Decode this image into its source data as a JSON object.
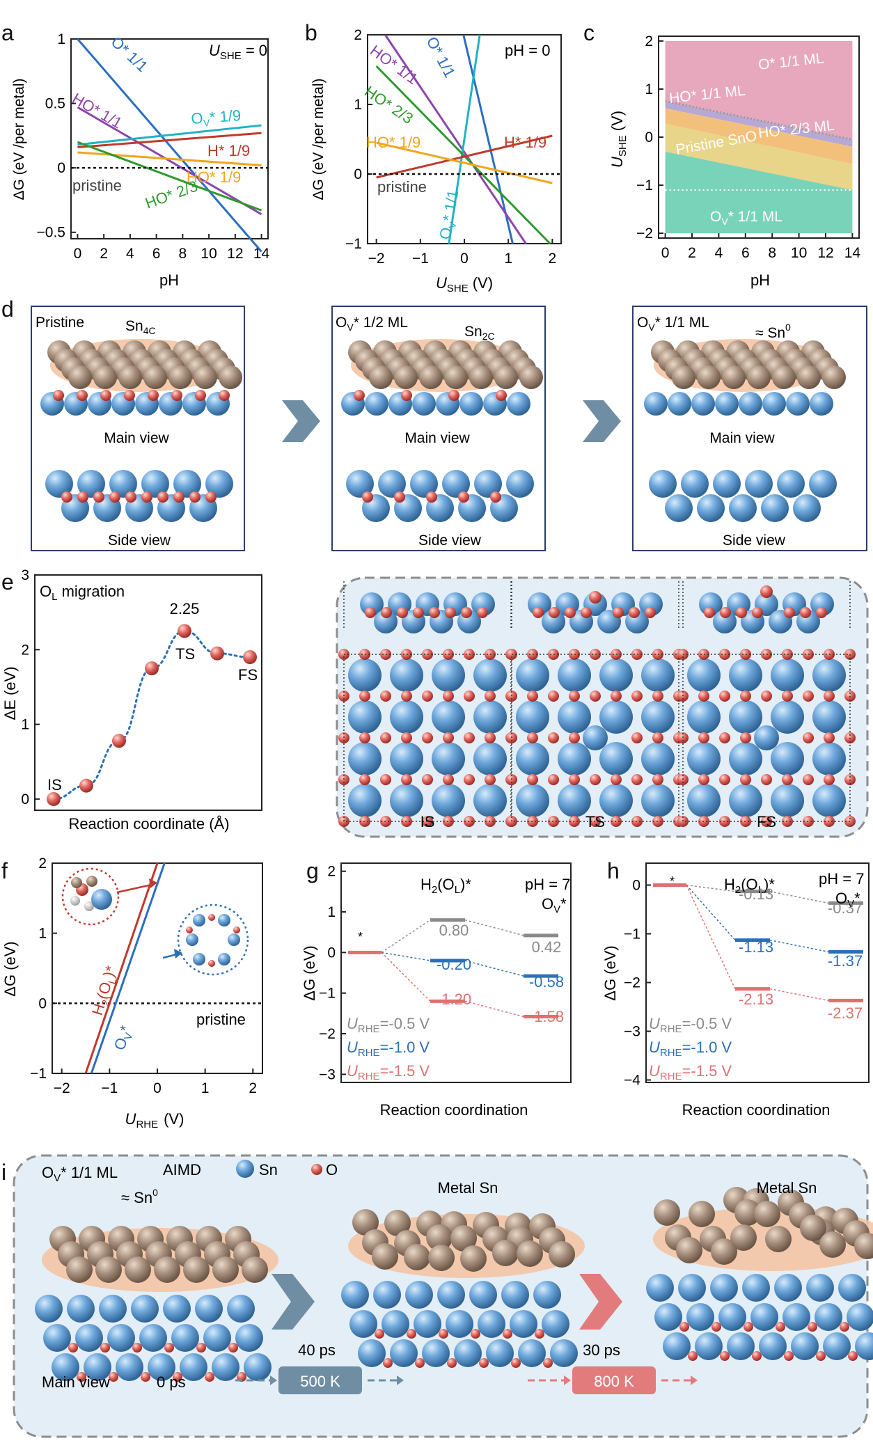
{
  "panel_letters": {
    "a": "a",
    "b": "b",
    "c": "c",
    "d": "d",
    "e": "e",
    "f": "f",
    "g": "g",
    "h": "h",
    "i": "i"
  },
  "colors": {
    "blue": "#2a6ec2",
    "purple": "#8e44ad",
    "cyan": "#1fb3c4",
    "red": "#c0392b",
    "orange": "#f2a51a",
    "green": "#2e9a2e",
    "grey": "#8a8a8a",
    "dark_blue": "#2c6fb4",
    "salmon": "#e07070",
    "sn_atom": "#5b9bd5",
    "o_atom": "#d9534f",
    "bg_blue": "#e3eef7",
    "arrow_steel": "#6f8ea3",
    "arrow_red": "#e27c7c"
  },
  "panel_a": {
    "corner_label_prefix": "U",
    "corner_label_sub": "SHE",
    "corner_label_suffix": " = 0",
    "ylabel": "ΔG (eV /per metal)",
    "xlabel": "pH",
    "xticks": [
      "0",
      "2",
      "4",
      "6",
      "8",
      "10",
      "12",
      "14"
    ],
    "yticks": [
      "−0.5",
      "0",
      "0.5",
      "1"
    ],
    "series_labels": {
      "o_star": "O* 1/1",
      "ho_star_1": "HO* 1/1",
      "ov_star": "O",
      "ov_tail": "* 1/9",
      "h_star": "H* 1/9",
      "ho_star_19": "HO* 1/9",
      "pristine": "pristine",
      "ho_star_23": "HO* 2/3"
    }
  },
  "panel_b": {
    "corner_label": "pH = 0",
    "ylabel": "ΔG (eV /per metal)",
    "xlabel_main": "U",
    "xlabel_sub": "SHE",
    "xlabel_unit": "(V)",
    "xticks": [
      "−2",
      "−1",
      "0",
      "1",
      "2"
    ],
    "yticks": [
      "−1",
      "0",
      "1",
      "2"
    ],
    "series_labels": {
      "ho_star_1": "HO* 1/1",
      "o_star": "O* 1/1",
      "ho_star_23": "HO* 2/3",
      "h_star": "H* 1/9",
      "ho_star_19": "HO* 1/9",
      "pristine": "pristine",
      "ov_star": "O",
      "ov_tail": "* 1/1"
    }
  },
  "panel_c": {
    "ylabel_main": "U",
    "ylabel_sub": "SHE",
    "ylabel_unit": "(V)",
    "xlabel": "pH",
    "xticks": [
      "0",
      "2",
      "4",
      "6",
      "8",
      "10",
      "12",
      "14"
    ],
    "yticks": [
      "−2",
      "−1",
      "0",
      "1",
      "2"
    ],
    "regions": {
      "o_star": "O* 1/1 ML",
      "ho_star": "HO* 1/1 ML",
      "ho_star_23": "HO* 2/3 ML",
      "pristine": "Pristine SnO",
      "ov": "O",
      "ov_tail": "* 1/1 ML"
    }
  },
  "panel_d": {
    "boxes": [
      {
        "title": "Pristine",
        "subtitle": "Sn",
        "subtitle_sub": "4C",
        "main": "Main view",
        "side": "Side view"
      },
      {
        "title": "O",
        "title_sub": "V",
        "title_tail": "* 1/2 ML",
        "subtitle": "Sn",
        "subtitle_sub": "2C",
        "main": "Main view",
        "side": "Side view"
      },
      {
        "title": "O",
        "title_sub": "V",
        "title_tail": "* 1/1 ML",
        "subtitle": "≈ Sn",
        "subtitle_sup": "0",
        "main": "Main view",
        "side": "Side view"
      }
    ]
  },
  "panel_e": {
    "title_main": "O",
    "title_sub": "L",
    "title_tail": " migration",
    "ylabel": "ΔE (eV)",
    "xlabel": "Reaction coordinate (Å)",
    "yticks": [
      "0",
      "1",
      "2",
      "3"
    ],
    "barrier_label": "2.25",
    "state_labels": {
      "is": "IS",
      "ts": "TS",
      "fs": "FS"
    },
    "structure_labels": [
      "IS",
      "TS",
      "FS"
    ]
  },
  "panel_f": {
    "ylabel": "ΔG (eV)",
    "xlabel_main": "U",
    "xlabel_sub": "RHE",
    "xlabel_unit": "(V)",
    "xticks": [
      "−2",
      "−1",
      "0",
      "1",
      "2"
    ],
    "yticks": [
      "−1",
      "0",
      "1",
      "2"
    ],
    "line_label_h2": "H",
    "line_label_h2_sub1": "2",
    "line_label_h2_mid": "(O",
    "line_label_h2_sub2": "L",
    "line_label_h2_tail": ")*",
    "line_label_ov": "O",
    "line_label_ov_sub": "V",
    "line_label_ov_tail": "*",
    "pristine": "pristine"
  },
  "panel_g": {
    "ylabel": "ΔG (eV)",
    "xlabel": "Reaction coordination",
    "yticks": [
      "−3",
      "−2",
      "−1",
      "0",
      "1",
      "2"
    ],
    "header_h2": "H",
    "header_h2_sub1": "2",
    "header_h2_mid": "(O",
    "header_h2_sub2": "L",
    "header_h2_tail": ")*",
    "header_ph": "pH = 7",
    "header_ov": "O",
    "header_ov_sub": "V",
    "header_ov_tail": "*",
    "star": "*",
    "values": {
      "g1": "0.80",
      "g2": "0.42",
      "b1": "-0.20",
      "b2": "-0.58",
      "r1": "-1.20",
      "r2": "-1.58"
    },
    "legend": [
      {
        "main": "U",
        "sub": "RHE",
        "tail": "=-0.5 V"
      },
      {
        "main": "U",
        "sub": "RHE",
        "tail": "=-1.0 V"
      },
      {
        "main": "U",
        "sub": "RHE",
        "tail": "=-1.5 V"
      }
    ]
  },
  "panel_h": {
    "ylabel": "ΔG (eV)",
    "xlabel": "Reaction coordination",
    "yticks": [
      "−4",
      "−3",
      "−2",
      "−1",
      "0"
    ],
    "header_h2": "H",
    "header_h2_sub1": "2",
    "header_h2_mid": "(O",
    "header_h2_sub2": "L",
    "header_h2_tail": ")*",
    "header_ph": "pH = 7",
    "header_ov": "O",
    "header_ov_sub": "V",
    "header_ov_tail": "*",
    "star": "*",
    "values": {
      "g1": "-0.13",
      "g2": "-0.37",
      "b1": "-1.13",
      "b2": "-1.37",
      "r1": "-2.13",
      "r2": "-2.37"
    },
    "legend": [
      {
        "main": "U",
        "sub": "RHE",
        "tail": "=-0.5 V"
      },
      {
        "main": "U",
        "sub": "RHE",
        "tail": "=-1.0 V"
      },
      {
        "main": "U",
        "sub": "RHE",
        "tail": "=-1.5 V"
      }
    ]
  },
  "panel_i": {
    "title_main": "O",
    "title_sub": "V",
    "title_tail": "* 1/1 ML",
    "aimd": "AIMD",
    "legend_sn": "Sn",
    "legend_o": "O",
    "approx": "≈ Sn",
    "approx_sup": "0",
    "metal_sn_1": "Metal Sn",
    "metal_sn_2": "Metal Sn",
    "main_view": "Main view",
    "t0": "0 ps",
    "t40": "40 ps",
    "t30": "30 ps",
    "k500": "500 K",
    "k800": "800 K"
  },
  "chart_data": [
    {
      "type": "line",
      "panel": "a",
      "xlabel": "pH",
      "ylabel": "ΔG (eV /per metal)",
      "xlim": [
        0,
        14
      ],
      "ylim": [
        -0.5,
        1
      ],
      "series": [
        {
          "name": "O* 1/1",
          "x": [
            0,
            14
          ],
          "y": [
            1.0,
            -0.65
          ]
        },
        {
          "name": "HO* 1/1",
          "x": [
            0,
            14
          ],
          "y": [
            0.47,
            -0.36
          ]
        },
        {
          "name": "Ov* 1/9",
          "x": [
            0,
            14
          ],
          "y": [
            0.18,
            0.33
          ]
        },
        {
          "name": "H* 1/9",
          "x": [
            0,
            14
          ],
          "y": [
            0.16,
            0.27
          ]
        },
        {
          "name": "HO* 1/9",
          "x": [
            0,
            14
          ],
          "y": [
            0.12,
            0.02
          ]
        },
        {
          "name": "HO* 2/3",
          "x": [
            0,
            14
          ],
          "y": [
            0.2,
            -0.33
          ]
        },
        {
          "name": "pristine",
          "x": [
            0,
            14
          ],
          "y": [
            0,
            0
          ]
        }
      ]
    },
    {
      "type": "line",
      "panel": "b",
      "xlabel": "U_SHE (V)",
      "ylabel": "ΔG (eV /per metal)",
      "xlim": [
        -2,
        2
      ],
      "ylim": [
        -1,
        2
      ],
      "series": [
        {
          "name": "O* 1/1",
          "x": [
            -0.02,
            1.1
          ],
          "y": [
            2.0,
            -1.0
          ]
        },
        {
          "name": "HO* 1/1",
          "x": [
            -1.8,
            1.4
          ],
          "y": [
            2.0,
            -1.0
          ]
        },
        {
          "name": "Ov* 1/1",
          "x": [
            -0.35,
            0.35
          ],
          "y": [
            -1.0,
            2.0
          ]
        },
        {
          "name": "HO* 2/3",
          "x": [
            -2,
            1.95
          ],
          "y": [
            1.55,
            -1.0
          ]
        },
        {
          "name": "H* 1/9",
          "x": [
            -2,
            2
          ],
          "y": [
            -0.05,
            0.55
          ]
        },
        {
          "name": "HO* 1/9",
          "x": [
            -2,
            2
          ],
          "y": [
            0.45,
            -0.13
          ]
        },
        {
          "name": "pristine",
          "x": [
            -2,
            2
          ],
          "y": [
            0,
            0
          ]
        }
      ]
    },
    {
      "type": "area",
      "panel": "c",
      "xlabel": "pH",
      "ylabel": "U_SHE (V)",
      "xlim": [
        0,
        14
      ],
      "ylim": [
        -2,
        2
      ],
      "regions": [
        "O* 1/1 ML",
        "HO* 1/1 ML",
        "HO* 2/3 ML",
        "Pristine SnO",
        "Ov* 1/1 ML"
      ]
    },
    {
      "type": "line",
      "panel": "e",
      "xlabel": "Reaction coordinate (Å)",
      "ylabel": "ΔE (eV)",
      "ylim": [
        0,
        3
      ],
      "series": [
        {
          "name": "",
          "y": [
            0.0,
            0.18,
            0.78,
            1.75,
            2.25,
            1.95,
            1.9
          ]
        }
      ],
      "labels": {
        "barrier": "2.25",
        "IS": "IS",
        "TS": "TS",
        "FS": "FS"
      }
    },
    {
      "type": "line",
      "panel": "f",
      "xlabel": "U_RHE (V)",
      "ylabel": "ΔG (eV)",
      "xlim": [
        -2,
        2
      ],
      "ylim": [
        -1,
        2
      ],
      "series": [
        {
          "name": "H2(OL)*",
          "x": [
            -1.5,
            0.0
          ],
          "y": [
            -1.0,
            2.0
          ]
        },
        {
          "name": "Ov*",
          "x": [
            -1.38,
            0.15
          ],
          "y": [
            -1.0,
            2.0
          ]
        },
        {
          "name": "pristine",
          "x": [
            -2,
            2
          ],
          "y": [
            0,
            0
          ]
        }
      ]
    },
    {
      "type": "line",
      "panel": "g",
      "ylabel": "ΔG (eV)",
      "ylim": [
        -3,
        2
      ],
      "series": [
        {
          "name": "U_RHE=-0.5 V",
          "values": [
            0,
            0.8,
            0.42
          ]
        },
        {
          "name": "U_RHE=-1.0 V",
          "values": [
            0,
            -0.2,
            -0.58
          ]
        },
        {
          "name": "U_RHE=-1.5 V",
          "values": [
            0,
            -1.2,
            -1.58
          ]
        }
      ]
    },
    {
      "type": "line",
      "panel": "h",
      "ylabel": "ΔG (eV)",
      "ylim": [
        -4,
        0
      ],
      "series": [
        {
          "name": "U_RHE=-0.5 V",
          "values": [
            0,
            -0.13,
            -0.37
          ]
        },
        {
          "name": "U_RHE=-1.0 V",
          "values": [
            0,
            -1.13,
            -1.37
          ]
        },
        {
          "name": "U_RHE=-1.5 V",
          "values": [
            0,
            -2.13,
            -2.37
          ]
        }
      ]
    }
  ]
}
